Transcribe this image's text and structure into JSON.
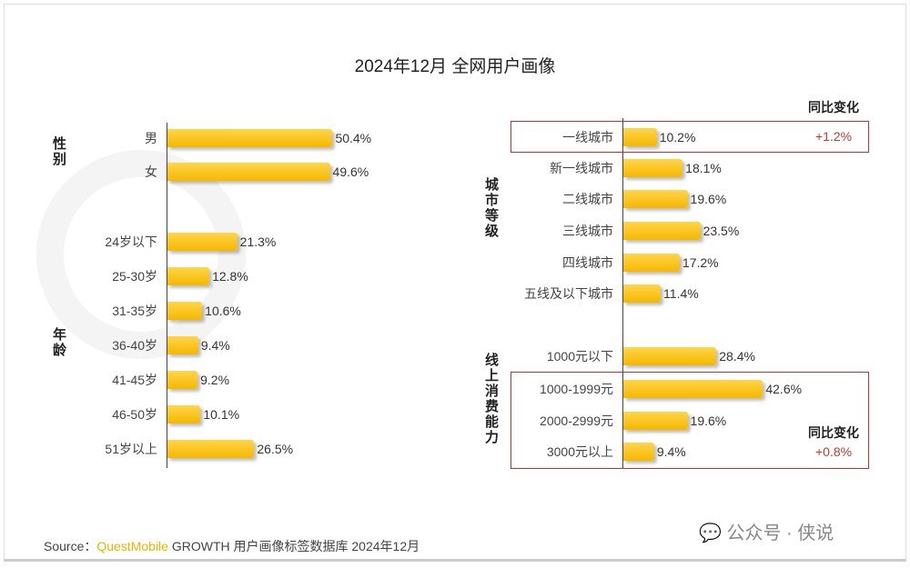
{
  "chart_data": {
    "type": "bar",
    "title": "2024年12月 全网用户画像",
    "panels": [
      {
        "group": "性别",
        "categories": [
          "男",
          "女"
        ],
        "values": [
          50.4,
          49.6
        ],
        "labels": [
          "50.4%",
          "49.6%"
        ]
      },
      {
        "group": "年龄",
        "categories": [
          "24岁以下",
          "25-30岁",
          "31-35岁",
          "36-40岁",
          "41-45岁",
          "46-50岁",
          "51岁以上"
        ],
        "values": [
          21.3,
          12.8,
          10.6,
          9.4,
          9.2,
          10.1,
          26.5
        ],
        "labels": [
          "21.3%",
          "12.8%",
          "10.6%",
          "9.4%",
          "9.2%",
          "10.1%",
          "26.5%"
        ]
      },
      {
        "group": "城市等级",
        "categories": [
          "一线城市",
          "新一线城市",
          "二线城市",
          "三线城市",
          "四线城市",
          "五线及以下城市"
        ],
        "values": [
          10.2,
          18.1,
          19.6,
          23.5,
          17.2,
          11.4
        ],
        "labels": [
          "10.2%",
          "18.1%",
          "19.6%",
          "23.5%",
          "17.2%",
          "11.4%"
        ]
      },
      {
        "group": "线上消费能力",
        "categories": [
          "1000元以下",
          "1000-1999元",
          "2000-2999元",
          "3000元以上"
        ],
        "values": [
          28.4,
          42.6,
          19.6,
          9.4
        ],
        "labels": [
          "28.4%",
          "42.6%",
          "19.6%",
          "9.4%"
        ]
      }
    ],
    "yoy": [
      {
        "header": "同比变化",
        "value": "+1.2%"
      },
      {
        "header": "同比变化",
        "value": "+0.8%"
      }
    ]
  },
  "watermark": "QUESTMOBILE",
  "source": {
    "prefix": "Source：",
    "brand": "QuestMobile",
    "rest": " GROWTH 用户画像标签数据库 2024年12月"
  },
  "wechat": "公众号 · 侠说"
}
